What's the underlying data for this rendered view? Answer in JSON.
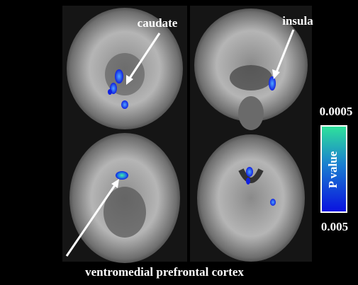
{
  "labels": {
    "caudate": "caudate",
    "insula": "insula",
    "vmpfc": "ventromedial prefrontal cortex"
  },
  "colorbar": {
    "title": "P value",
    "top_label": "0.0005",
    "bottom_label": "0.005"
  }
}
